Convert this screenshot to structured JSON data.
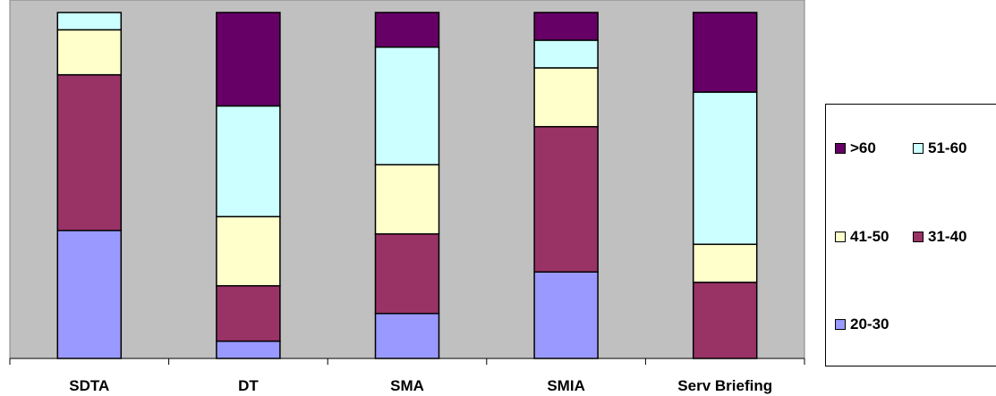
{
  "chart_data": {
    "type": "bar",
    "stacked": true,
    "normalized": true,
    "title": "",
    "xlabel": "",
    "ylabel": "",
    "ylim": [
      0,
      100
    ],
    "grid": false,
    "legend_position": "right",
    "categories": [
      "SDTA",
      "DT",
      "SMA",
      "SMIA",
      "Serv Briefing"
    ],
    "series": [
      {
        "name": "20-30",
        "color": "#9999ff",
        "values": [
          37,
          5,
          13,
          25,
          0
        ]
      },
      {
        "name": "31-40",
        "color": "#993366",
        "values": [
          45,
          16,
          23,
          42,
          22
        ]
      },
      {
        "name": "41-50",
        "color": "#ffffcc",
        "values": [
          13,
          20,
          20,
          17,
          11
        ]
      },
      {
        "name": "51-60",
        "color": "#ccffff",
        "values": [
          5,
          32,
          34,
          8,
          44
        ]
      },
      {
        "name": ">60",
        "color": "#660066",
        "values": [
          0,
          27,
          10,
          8,
          23
        ]
      }
    ]
  }
}
